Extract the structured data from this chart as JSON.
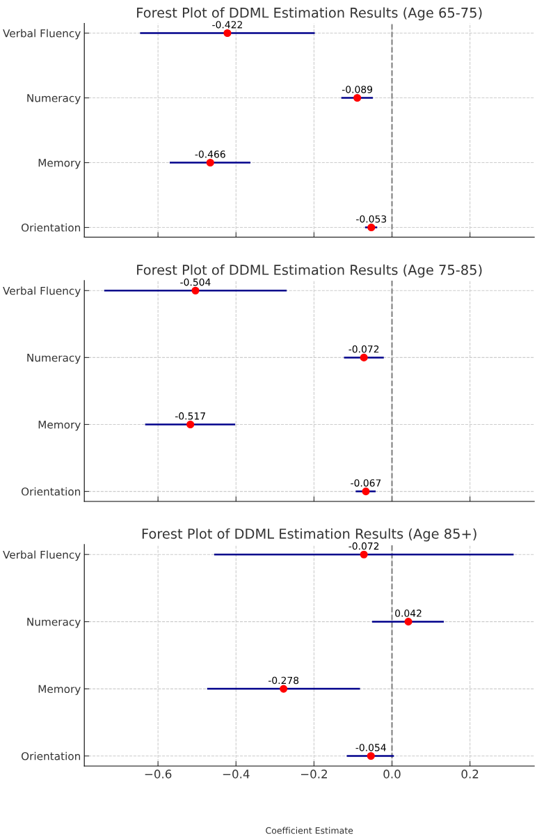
{
  "chart_data": [
    {
      "type": "scatter",
      "orientation": "horizontal",
      "title": "Forest Plot of DDML Estimation Results (Age 65-75)",
      "categories": [
        "Verbal Fluency",
        "Numeracy",
        "Memory",
        "Orientation"
      ],
      "series": [
        {
          "color": "#ff0000",
          "values": [
            -0.422,
            -0.089,
            -0.466,
            -0.053
          ],
          "errors": [
            [
              -0.646,
              -0.198
            ],
            [
              -0.13,
              -0.049
            ],
            [
              -0.57,
              -0.363
            ],
            [
              -0.069,
              -0.038
            ]
          ]
        }
      ],
      "xlim": [
        -0.789,
        0.365
      ],
      "xticks": [
        {
          "value": -0.6,
          "label": null
        },
        {
          "value": -0.4,
          "label": null
        },
        {
          "value": -0.2,
          "label": null
        },
        {
          "value": 0.0,
          "label": null
        },
        {
          "value": 0.2,
          "label": null
        }
      ],
      "tick_labels": "y",
      "grid": true,
      "marker": "circle",
      "data_labels": true,
      "ref_lines": [
        {
          "axis": "x",
          "value": 0,
          "color": "#808080",
          "line_style": "dashed"
        }
      ]
    },
    {
      "type": "scatter",
      "orientation": "horizontal",
      "title": "Forest Plot of DDML Estimation Results (Age 75-85)",
      "categories": [
        "Verbal Fluency",
        "Numeracy",
        "Memory",
        "Orientation"
      ],
      "series": [
        {
          "color": "#ff0000",
          "values": [
            -0.504,
            -0.072,
            -0.517,
            -0.067
          ],
          "errors": [
            [
              -0.738,
              -0.27
            ],
            [
              -0.123,
              -0.021
            ],
            [
              -0.633,
              -0.402
            ],
            [
              -0.093,
              -0.042
            ]
          ]
        }
      ],
      "xlim": [
        -0.789,
        0.365
      ],
      "xticks": [
        {
          "value": -0.6,
          "label": null
        },
        {
          "value": -0.4,
          "label": null
        },
        {
          "value": -0.2,
          "label": null
        },
        {
          "value": 0.0,
          "label": null
        },
        {
          "value": 0.2,
          "label": null
        }
      ],
      "tick_labels": "y",
      "grid": true,
      "marker": "circle",
      "data_labels": true,
      "ref_lines": [
        {
          "axis": "x",
          "value": 0,
          "color": "#808080",
          "line_style": "dashed"
        }
      ]
    },
    {
      "type": "scatter",
      "orientation": "horizontal",
      "title": "Forest Plot of DDML Estimation Results (Age 85+)",
      "xlabel": "Coefficient Estimate",
      "categories": [
        "Verbal Fluency",
        "Numeracy",
        "Memory",
        "Orientation"
      ],
      "series": [
        {
          "color": "#ff0000",
          "values": [
            -0.072,
            0.042,
            -0.278,
            -0.054
          ],
          "errors": [
            [
              -0.456,
              0.312
            ],
            [
              -0.051,
              0.133
            ],
            [
              -0.474,
              -0.082
            ],
            [
              -0.116,
              0.005
            ]
          ]
        }
      ],
      "xlim": [
        -0.789,
        0.365
      ],
      "xticks": [
        {
          "value": -0.6,
          "label": "−0.6"
        },
        {
          "value": -0.4,
          "label": "−0.4"
        },
        {
          "value": -0.2,
          "label": "−0.2"
        },
        {
          "value": 0.0,
          "label": "0.0"
        },
        {
          "value": 0.2,
          "label": "0.2"
        }
      ],
      "grid": true,
      "marker": "circle",
      "data_labels": true,
      "ref_lines": [
        {
          "axis": "x",
          "value": 0,
          "color": "#808080",
          "line_style": "dashed"
        }
      ]
    }
  ]
}
